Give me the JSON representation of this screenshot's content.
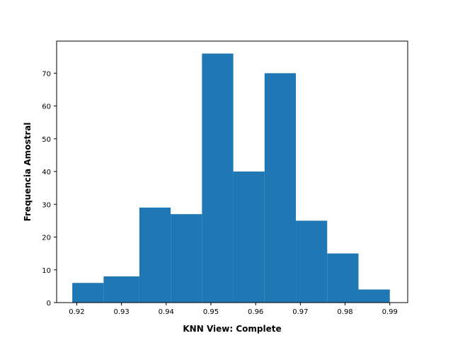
{
  "chart_data": {
    "type": "bar",
    "subtype": "histogram",
    "title": "",
    "xlabel": "KNN View: Complete",
    "ylabel": "Frequencia Amostral",
    "xlim": [
      0.9155,
      0.994
    ],
    "ylim": [
      0,
      79.8
    ],
    "grid": false,
    "legend": "none",
    "bar_color": "#1f77b4",
    "bins": [
      {
        "x0": 0.919,
        "x1": 0.926,
        "count": 6
      },
      {
        "x0": 0.926,
        "x1": 0.934,
        "count": 8
      },
      {
        "x0": 0.934,
        "x1": 0.941,
        "count": 29
      },
      {
        "x0": 0.941,
        "x1": 0.948,
        "count": 27
      },
      {
        "x0": 0.948,
        "x1": 0.955,
        "count": 76
      },
      {
        "x0": 0.955,
        "x1": 0.962,
        "count": 40
      },
      {
        "x0": 0.962,
        "x1": 0.969,
        "count": 70
      },
      {
        "x0": 0.969,
        "x1": 0.976,
        "count": 25
      },
      {
        "x0": 0.976,
        "x1": 0.983,
        "count": 15
      },
      {
        "x0": 0.983,
        "x1": 0.99,
        "count": 4
      }
    ],
    "xticks": [
      {
        "value": 0.92,
        "label": "0.92"
      },
      {
        "value": 0.93,
        "label": "0.93"
      },
      {
        "value": 0.94,
        "label": "0.94"
      },
      {
        "value": 0.95,
        "label": "0.95"
      },
      {
        "value": 0.96,
        "label": "0.96"
      },
      {
        "value": 0.97,
        "label": "0.97"
      },
      {
        "value": 0.98,
        "label": "0.98"
      },
      {
        "value": 0.99,
        "label": "0.99"
      }
    ],
    "yticks": [
      {
        "value": 0,
        "label": "0"
      },
      {
        "value": 10,
        "label": "10"
      },
      {
        "value": 20,
        "label": "20"
      },
      {
        "value": 30,
        "label": "30"
      },
      {
        "value": 40,
        "label": "40"
      },
      {
        "value": 50,
        "label": "50"
      },
      {
        "value": 60,
        "label": "60"
      },
      {
        "value": 70,
        "label": "70"
      }
    ]
  }
}
